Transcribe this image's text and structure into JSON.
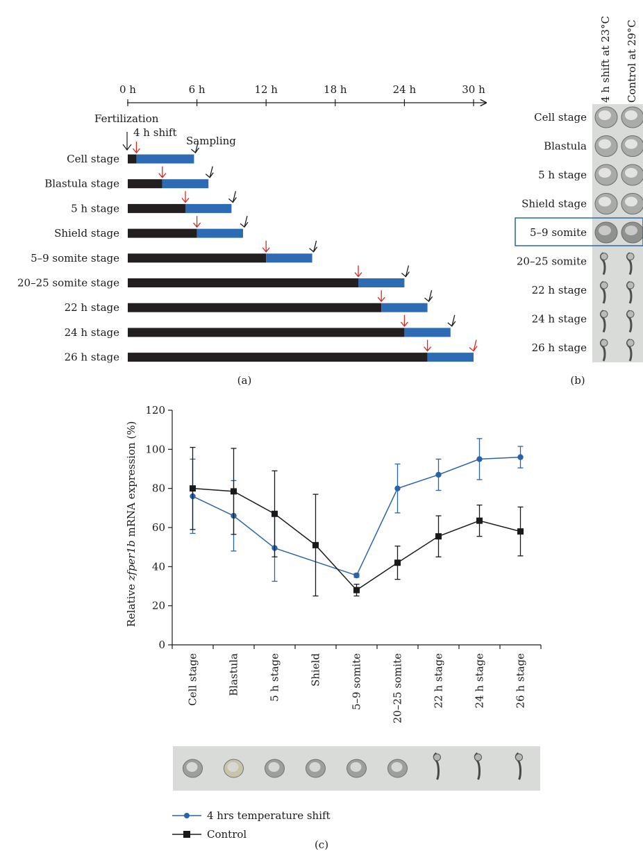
{
  "panel_a": {
    "label": "(a)",
    "time_ticks": [
      "0 h",
      "6 h",
      "12 h",
      "18 h",
      "24 h",
      "30 h"
    ],
    "annotations": {
      "fertilization": "Fertilization",
      "shift": "4 h shift",
      "sampling": "Sampling"
    },
    "rows": [
      {
        "label": "Cell stage",
        "shift_start_h": 0.75,
        "sampling_h": 5.75
      },
      {
        "label": "Blastula stage",
        "shift_start_h": 3,
        "sampling_h": 7
      },
      {
        "label": "5 h stage",
        "shift_start_h": 5,
        "sampling_h": 9
      },
      {
        "label": "Shield stage",
        "shift_start_h": 6,
        "sampling_h": 10
      },
      {
        "label": "5–9 somite stage",
        "shift_start_h": 12,
        "sampling_h": 16
      },
      {
        "label": "20–25 somite stage",
        "shift_start_h": 20,
        "sampling_h": 24
      },
      {
        "label": "22 h stage",
        "shift_start_h": 22,
        "sampling_h": 26
      },
      {
        "label": "24 h stage",
        "shift_start_h": 24,
        "sampling_h": 28
      },
      {
        "label": "26 h stage",
        "shift_start_h": 26,
        "sampling_h": 30
      }
    ]
  },
  "panel_b": {
    "label": "(b)",
    "columns": [
      "4 h shift at 23°C",
      "Control at 29°C"
    ],
    "rows": [
      "Cell stage",
      "Blastula",
      "5 h stage",
      "Shield stage",
      "5–9 somite",
      "20–25 somite",
      "22 h stage",
      "24 h stage",
      "26 h stage"
    ],
    "highlighted_row": "5–9 somite"
  },
  "panel_c": {
    "label": "(c)",
    "legend": [
      "4 hrs temperature shift",
      "Control"
    ]
  },
  "chart_data": {
    "type": "line",
    "ylabel_prefix": "Relative ",
    "ylabel_italic": "zfper1b",
    "ylabel_suffix": " mRNA expression (%)",
    "ylim": [
      0,
      120
    ],
    "yticks": [
      "0",
      "20",
      "40",
      "60",
      "80",
      "100",
      "120"
    ],
    "categories": [
      "Cell stage",
      "Blastula",
      "5 h stage",
      "Shield",
      "5–9 somite",
      "20–25 somite",
      "22 h stage",
      "24 h stage",
      "26 h stage"
    ],
    "series": [
      {
        "name": "4 hrs temperature shift",
        "color": "#2a64a8",
        "marker": "circle",
        "values": [
          76,
          66,
          49.5,
          null,
          35.5,
          80,
          87,
          95,
          96
        ],
        "error": [
          19,
          18,
          17,
          null,
          1,
          12.5,
          8,
          10.5,
          5.5
        ]
      },
      {
        "name": "Control",
        "color": "#1a1a1a",
        "marker": "square",
        "values": [
          80,
          78.5,
          67,
          51,
          28,
          42,
          55.5,
          63.5,
          58
        ],
        "error": [
          21,
          22,
          22,
          26,
          3,
          8.5,
          10.5,
          8,
          12.5
        ]
      }
    ]
  }
}
